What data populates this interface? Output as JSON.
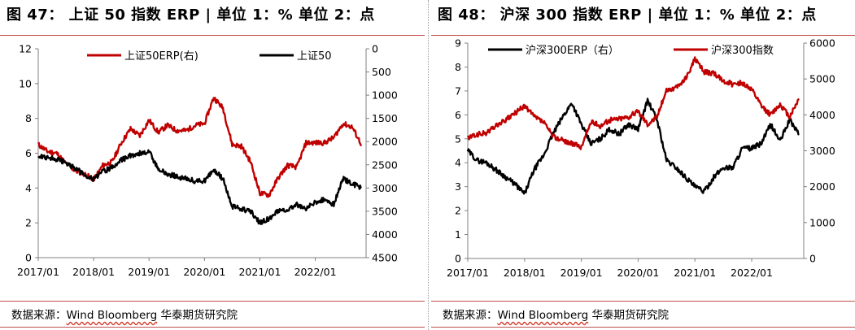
{
  "left": {
    "title": "图 47：  上证 50 指数 ERP  | 单位 1：% 单位 2：点",
    "source": "数据来源：Wind Bloomberg 华泰期货研究院",
    "source_prefix": "数据来源：",
    "source_wavy": "Wind Bloomberg",
    "source_suffix": " 华泰期货研究院",
    "colors": {
      "erp": "#c00000",
      "index": "#000000"
    }
  },
  "right": {
    "title": "图 48：  沪深 300 指数 ERP  | 单位 1：% 单位 2：点",
    "source": "数据来源：Wind Bloomberg 华泰期货研究院",
    "source_prefix": "数据来源：",
    "source_wavy": "Wind Bloomberg",
    "source_suffix": " 华泰期货研究院",
    "colors": {
      "erp": "#000000",
      "index": "#c00000"
    }
  },
  "chart_data": [
    {
      "type": "line",
      "x_ticks": [
        "2017/01",
        "2018/01",
        "2019/01",
        "2020/01",
        "2021/01",
        "2022/01"
      ],
      "x_range": [
        "2017/01",
        "2022/12"
      ],
      "y_left": {
        "min": 0,
        "max": 12,
        "ticks": [
          "0",
          "2",
          "4",
          "6",
          "8",
          "10",
          "12"
        ]
      },
      "y_right": {
        "min": 0,
        "max": 4500,
        "inverted": true,
        "ticks": [
          "0",
          "500",
          "1000",
          "1500",
          "2000",
          "2500",
          "3000",
          "3500",
          "4000",
          "4500"
        ]
      },
      "legend_placement": "top",
      "series": [
        {
          "name": "上证50ERP(右)",
          "axis": "left",
          "color": "#c00000",
          "x": [
            "2017/01",
            "2017/03",
            "2017/05",
            "2017/07",
            "2017/09",
            "2017/11",
            "2018/01",
            "2018/03",
            "2018/05",
            "2018/07",
            "2018/09",
            "2018/11",
            "2019/01",
            "2019/03",
            "2019/05",
            "2019/07",
            "2019/09",
            "2019/11",
            "2020/01",
            "2020/03",
            "2020/05",
            "2020/07",
            "2020/09",
            "2020/11",
            "2021/01",
            "2021/03",
            "2021/05",
            "2021/07",
            "2021/09",
            "2021/11",
            "2022/01",
            "2022/03",
            "2022/05",
            "2022/07",
            "2022/09",
            "2022/11"
          ],
          "values": [
            6.5,
            6.1,
            6.0,
            5.4,
            5.0,
            4.8,
            4.5,
            5.3,
            5.5,
            6.6,
            7.4,
            7.0,
            7.9,
            7.2,
            7.6,
            7.3,
            7.3,
            7.6,
            7.7,
            9.2,
            8.6,
            6.5,
            6.4,
            5.5,
            3.7,
            3.6,
            4.6,
            5.3,
            5.2,
            6.6,
            6.6,
            6.6,
            6.9,
            7.7,
            7.5,
            6.5
          ]
        },
        {
          "name": "上证50",
          "axis": "right",
          "color": "#000000",
          "x": [
            "2017/01",
            "2017/03",
            "2017/05",
            "2017/07",
            "2017/09",
            "2017/11",
            "2018/01",
            "2018/03",
            "2018/05",
            "2018/07",
            "2018/09",
            "2018/11",
            "2019/01",
            "2019/03",
            "2019/05",
            "2019/07",
            "2019/09",
            "2019/11",
            "2020/01",
            "2020/03",
            "2020/05",
            "2020/07",
            "2020/09",
            "2020/11",
            "2021/01",
            "2021/03",
            "2021/05",
            "2021/07",
            "2021/09",
            "2021/11",
            "2022/01",
            "2022/03",
            "2022/05",
            "2022/07",
            "2022/09",
            "2022/11"
          ],
          "values": [
            2300,
            2340,
            2380,
            2450,
            2580,
            2700,
            2820,
            2650,
            2550,
            2400,
            2300,
            2250,
            2220,
            2600,
            2700,
            2750,
            2800,
            2850,
            2850,
            2600,
            2800,
            3400,
            3450,
            3500,
            3750,
            3650,
            3500,
            3450,
            3350,
            3450,
            3300,
            3250,
            3350,
            2800,
            2900,
            3000
          ]
        }
      ]
    },
    {
      "type": "line",
      "x_ticks": [
        "2017/01",
        "2018/01",
        "2019/01",
        "2020/01",
        "2021/01",
        "2022/01"
      ],
      "x_range": [
        "2017/01",
        "2022/12"
      ],
      "y_left": {
        "min": 0,
        "max": 9,
        "ticks": [
          "0",
          "1",
          "2",
          "3",
          "4",
          "5",
          "6",
          "7",
          "8",
          "9"
        ]
      },
      "y_right": {
        "min": 0,
        "max": 6000,
        "ticks": [
          "0",
          "1000",
          "2000",
          "3000",
          "4000",
          "5000",
          "6000"
        ]
      },
      "legend_placement": "top",
      "series": [
        {
          "name": "沪深300ERP（右）",
          "axis": "left",
          "color": "#000000",
          "x": [
            "2017/01",
            "2017/03",
            "2017/05",
            "2017/07",
            "2017/09",
            "2017/11",
            "2018/01",
            "2018/03",
            "2018/05",
            "2018/07",
            "2018/09",
            "2018/11",
            "2019/01",
            "2019/03",
            "2019/05",
            "2019/07",
            "2019/09",
            "2019/11",
            "2020/01",
            "2020/03",
            "2020/05",
            "2020/07",
            "2020/09",
            "2020/11",
            "2021/01",
            "2021/03",
            "2021/05",
            "2021/07",
            "2021/09",
            "2021/11",
            "2022/01",
            "2022/03",
            "2022/05",
            "2022/07",
            "2022/09",
            "2022/11"
          ],
          "values": [
            4.5,
            4.1,
            4.0,
            3.7,
            3.4,
            3.1,
            2.7,
            3.7,
            4.3,
            5.2,
            5.9,
            6.5,
            5.6,
            4.8,
            5.0,
            5.4,
            5.2,
            5.6,
            5.4,
            6.6,
            5.8,
            4.1,
            3.8,
            3.4,
            3.0,
            2.8,
            3.4,
            3.8,
            3.8,
            4.6,
            4.6,
            4.8,
            5.6,
            4.9,
            5.8,
            5.2
          ]
        },
        {
          "name": "沪深300指数",
          "axis": "right",
          "color": "#c00000",
          "x": [
            "2017/01",
            "2017/03",
            "2017/05",
            "2017/07",
            "2017/09",
            "2017/11",
            "2018/01",
            "2018/03",
            "2018/05",
            "2018/07",
            "2018/09",
            "2018/11",
            "2019/01",
            "2019/03",
            "2019/05",
            "2019/07",
            "2019/09",
            "2019/11",
            "2020/01",
            "2020/03",
            "2020/05",
            "2020/07",
            "2020/09",
            "2020/11",
            "2021/01",
            "2021/03",
            "2021/05",
            "2021/07",
            "2021/09",
            "2021/11",
            "2022/01",
            "2022/03",
            "2022/05",
            "2022/07",
            "2022/09",
            "2022/11"
          ],
          "values": [
            3350,
            3450,
            3500,
            3700,
            3850,
            4050,
            4250,
            3950,
            3800,
            3400,
            3300,
            3200,
            3100,
            3800,
            3700,
            3850,
            3900,
            3950,
            4100,
            3750,
            3950,
            4700,
            4750,
            5000,
            5550,
            5200,
            5150,
            4950,
            4850,
            4900,
            4700,
            4250,
            4000,
            4300,
            3950,
            4450
          ]
        }
      ]
    }
  ]
}
